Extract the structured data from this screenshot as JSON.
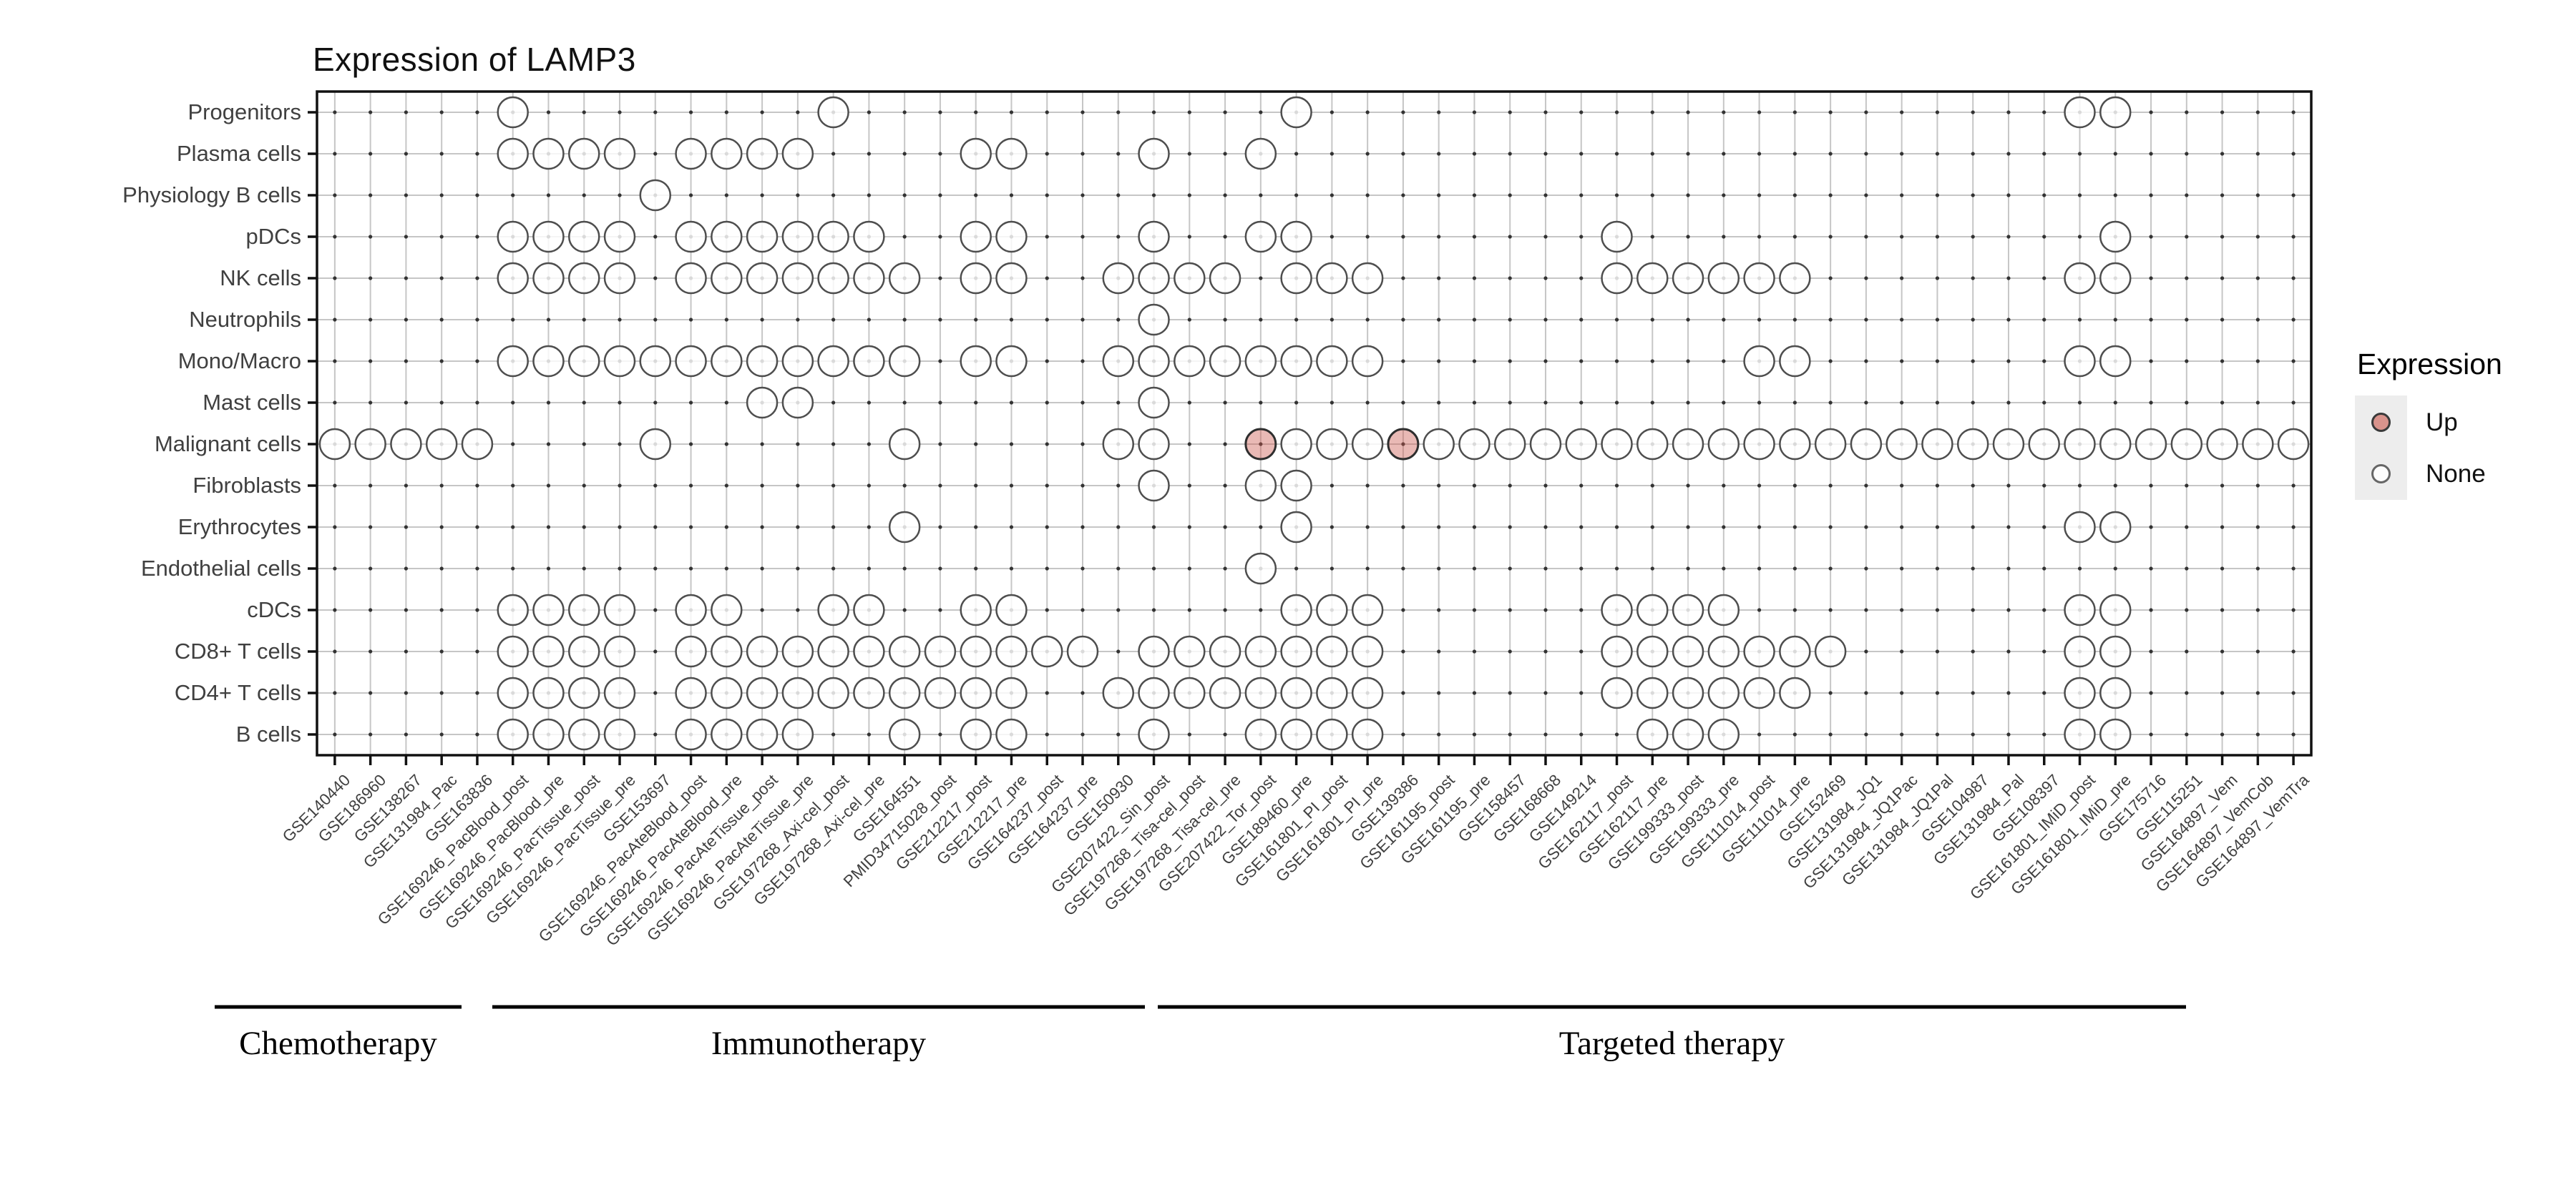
{
  "title": "Expression of LAMP3",
  "legend": {
    "title": "Expression",
    "items": [
      {
        "label": "Up",
        "color": "#D9938C"
      },
      {
        "label": "None",
        "color": "#FCFCFC"
      }
    ]
  },
  "colors": {
    "up_fill": "rgba(203,88,78,0.42)",
    "up_stroke": "#2e2e2e",
    "none_fill": "rgba(255,255,255,0.82)",
    "circle_stroke": "#4e4e4e",
    "grid": "#c6c6c6",
    "grid_dot": "#333333",
    "axis_text": "#404040",
    "panel_border": "#111111",
    "group_bar": "#000000"
  },
  "chart_data": {
    "type": "scatter",
    "title": "Expression of LAMP3",
    "legend_title": "Expression",
    "legend_items": [
      "Up",
      "None"
    ],
    "grid": true,
    "legend_position": "right",
    "x_categories": [
      "GSE140440",
      "GSE186960",
      "GSE138267",
      "GSE131984_Pac",
      "GSE163836",
      "GSE169246_PacBlood_post",
      "GSE169246_PacBlood_pre",
      "GSE169246_PacTissue_post",
      "GSE169246_PacTissue_pre",
      "GSE153697",
      "GSE169246_PacAteBlood_post",
      "GSE169246_PacAteBlood_pre",
      "GSE169246_PacAteTissue_post",
      "GSE169246_PacAteTissue_pre",
      "GSE197268_Axi-cel_post",
      "GSE197268_Axi-cel_pre",
      "GSE164551",
      "PMID34715028_post",
      "GSE212217_post",
      "GSE212217_pre",
      "GSE164237_post",
      "GSE164237_pre",
      "GSE150930",
      "GSE207422_Sin_post",
      "GSE197268_Tisa-cel_post",
      "GSE197268_Tisa-cel_pre",
      "GSE207422_Tor_post",
      "GSE189460_pre",
      "GSE161801_PI_post",
      "GSE161801_PI_pre",
      "GSE139386",
      "GSE161195_post",
      "GSE161195_pre",
      "GSE158457",
      "GSE168668",
      "GSE149214",
      "GSE162117_post",
      "GSE162117_pre",
      "GSE199333_post",
      "GSE199333_pre",
      "GSE111014_post",
      "GSE111014_pre",
      "GSE152469",
      "GSE131984_JQ1",
      "GSE131984_JQ1Pac",
      "GSE131984_JQ1Pal",
      "GSE104987",
      "GSE131984_Pal",
      "GSE108397",
      "GSE161801_IMiD_post",
      "GSE161801_IMiD_pre",
      "GSE175716",
      "GSE115251",
      "GSE164897_Vem",
      "GSE164897_VemCob",
      "GSE164897_VemTra"
    ],
    "y_categories": [
      "Progenitors",
      "Plasma cells",
      "Physiology B cells",
      "pDCs",
      "NK cells",
      "Neutrophils",
      "Mono/Macro",
      "Mast cells",
      "Malignant cells",
      "Fibroblasts",
      "Erythrocytes",
      "Endothelial cells",
      "cDCs",
      "CD8+ T cells",
      "CD4+ T cells",
      "B cells"
    ],
    "cells": [
      {
        "cell_type": "Progenitors",
        "none_cols": [
          6,
          15,
          28,
          50,
          51
        ],
        "up_cols": []
      },
      {
        "cell_type": "Plasma cells",
        "none_cols": [
          6,
          7,
          8,
          9,
          11,
          12,
          13,
          14,
          19,
          20,
          24,
          27
        ],
        "up_cols": []
      },
      {
        "cell_type": "Physiology B cells",
        "none_cols": [
          10
        ],
        "up_cols": []
      },
      {
        "cell_type": "pDCs",
        "none_cols": [
          6,
          7,
          8,
          9,
          11,
          12,
          13,
          14,
          15,
          16,
          19,
          20,
          24,
          27,
          28,
          37,
          51
        ],
        "up_cols": []
      },
      {
        "cell_type": "NK cells",
        "none_cols": [
          6,
          7,
          8,
          9,
          11,
          12,
          13,
          14,
          15,
          16,
          17,
          19,
          20,
          23,
          24,
          25,
          26,
          28,
          29,
          30,
          37,
          38,
          39,
          40,
          41,
          42,
          50,
          51
        ],
        "up_cols": []
      },
      {
        "cell_type": "Neutrophils",
        "none_cols": [
          24
        ],
        "up_cols": []
      },
      {
        "cell_type": "Mono/Macro",
        "none_cols": [
          6,
          7,
          8,
          9,
          10,
          11,
          12,
          13,
          14,
          15,
          16,
          17,
          19,
          20,
          23,
          24,
          25,
          26,
          27,
          28,
          29,
          30,
          41,
          42,
          50,
          51
        ],
        "up_cols": []
      },
      {
        "cell_type": "Mast cells",
        "none_cols": [
          13,
          14,
          24
        ],
        "up_cols": []
      },
      {
        "cell_type": "Malignant cells",
        "none_cols": [
          1,
          2,
          3,
          4,
          5,
          10,
          17,
          23,
          24,
          28,
          29,
          30,
          32,
          33,
          34,
          35,
          36,
          37,
          38,
          39,
          40,
          41,
          42,
          43,
          44,
          45,
          46,
          47,
          48,
          49,
          50,
          51,
          52,
          53,
          54,
          55,
          56
        ],
        "up_cols": [
          27,
          31
        ]
      },
      {
        "cell_type": "Fibroblasts",
        "none_cols": [
          24,
          27,
          28
        ],
        "up_cols": []
      },
      {
        "cell_type": "Erythrocytes",
        "none_cols": [
          17,
          28,
          50,
          51
        ],
        "up_cols": []
      },
      {
        "cell_type": "Endothelial cells",
        "none_cols": [
          27
        ],
        "up_cols": []
      },
      {
        "cell_type": "cDCs",
        "none_cols": [
          6,
          7,
          8,
          9,
          11,
          12,
          15,
          16,
          19,
          20,
          28,
          29,
          30,
          37,
          38,
          39,
          40,
          50,
          51
        ],
        "up_cols": []
      },
      {
        "cell_type": "CD8+ T cells",
        "none_cols": [
          6,
          7,
          8,
          9,
          11,
          12,
          13,
          14,
          15,
          16,
          17,
          18,
          19,
          20,
          21,
          22,
          24,
          25,
          26,
          27,
          28,
          29,
          30,
          37,
          38,
          39,
          40,
          41,
          42,
          43,
          50,
          51
        ],
        "up_cols": []
      },
      {
        "cell_type": "CD4+ T cells",
        "none_cols": [
          6,
          7,
          8,
          9,
          11,
          12,
          13,
          14,
          15,
          16,
          17,
          18,
          19,
          20,
          23,
          24,
          25,
          26,
          27,
          28,
          29,
          30,
          37,
          38,
          39,
          40,
          41,
          42,
          50,
          51
        ],
        "up_cols": []
      },
      {
        "cell_type": "B cells",
        "none_cols": [
          6,
          7,
          8,
          9,
          11,
          12,
          13,
          14,
          17,
          19,
          20,
          24,
          27,
          28,
          29,
          30,
          38,
          39,
          40,
          50,
          51
        ],
        "up_cols": []
      }
    ],
    "groups": [
      {
        "label": "Chemotherapy",
        "col_start": 1,
        "col_end": 5
      },
      {
        "label": "Immunotherapy",
        "col_start": 6,
        "col_end": 23
      },
      {
        "label": "Targeted therapy",
        "col_start": 24,
        "col_end": 56
      }
    ]
  }
}
